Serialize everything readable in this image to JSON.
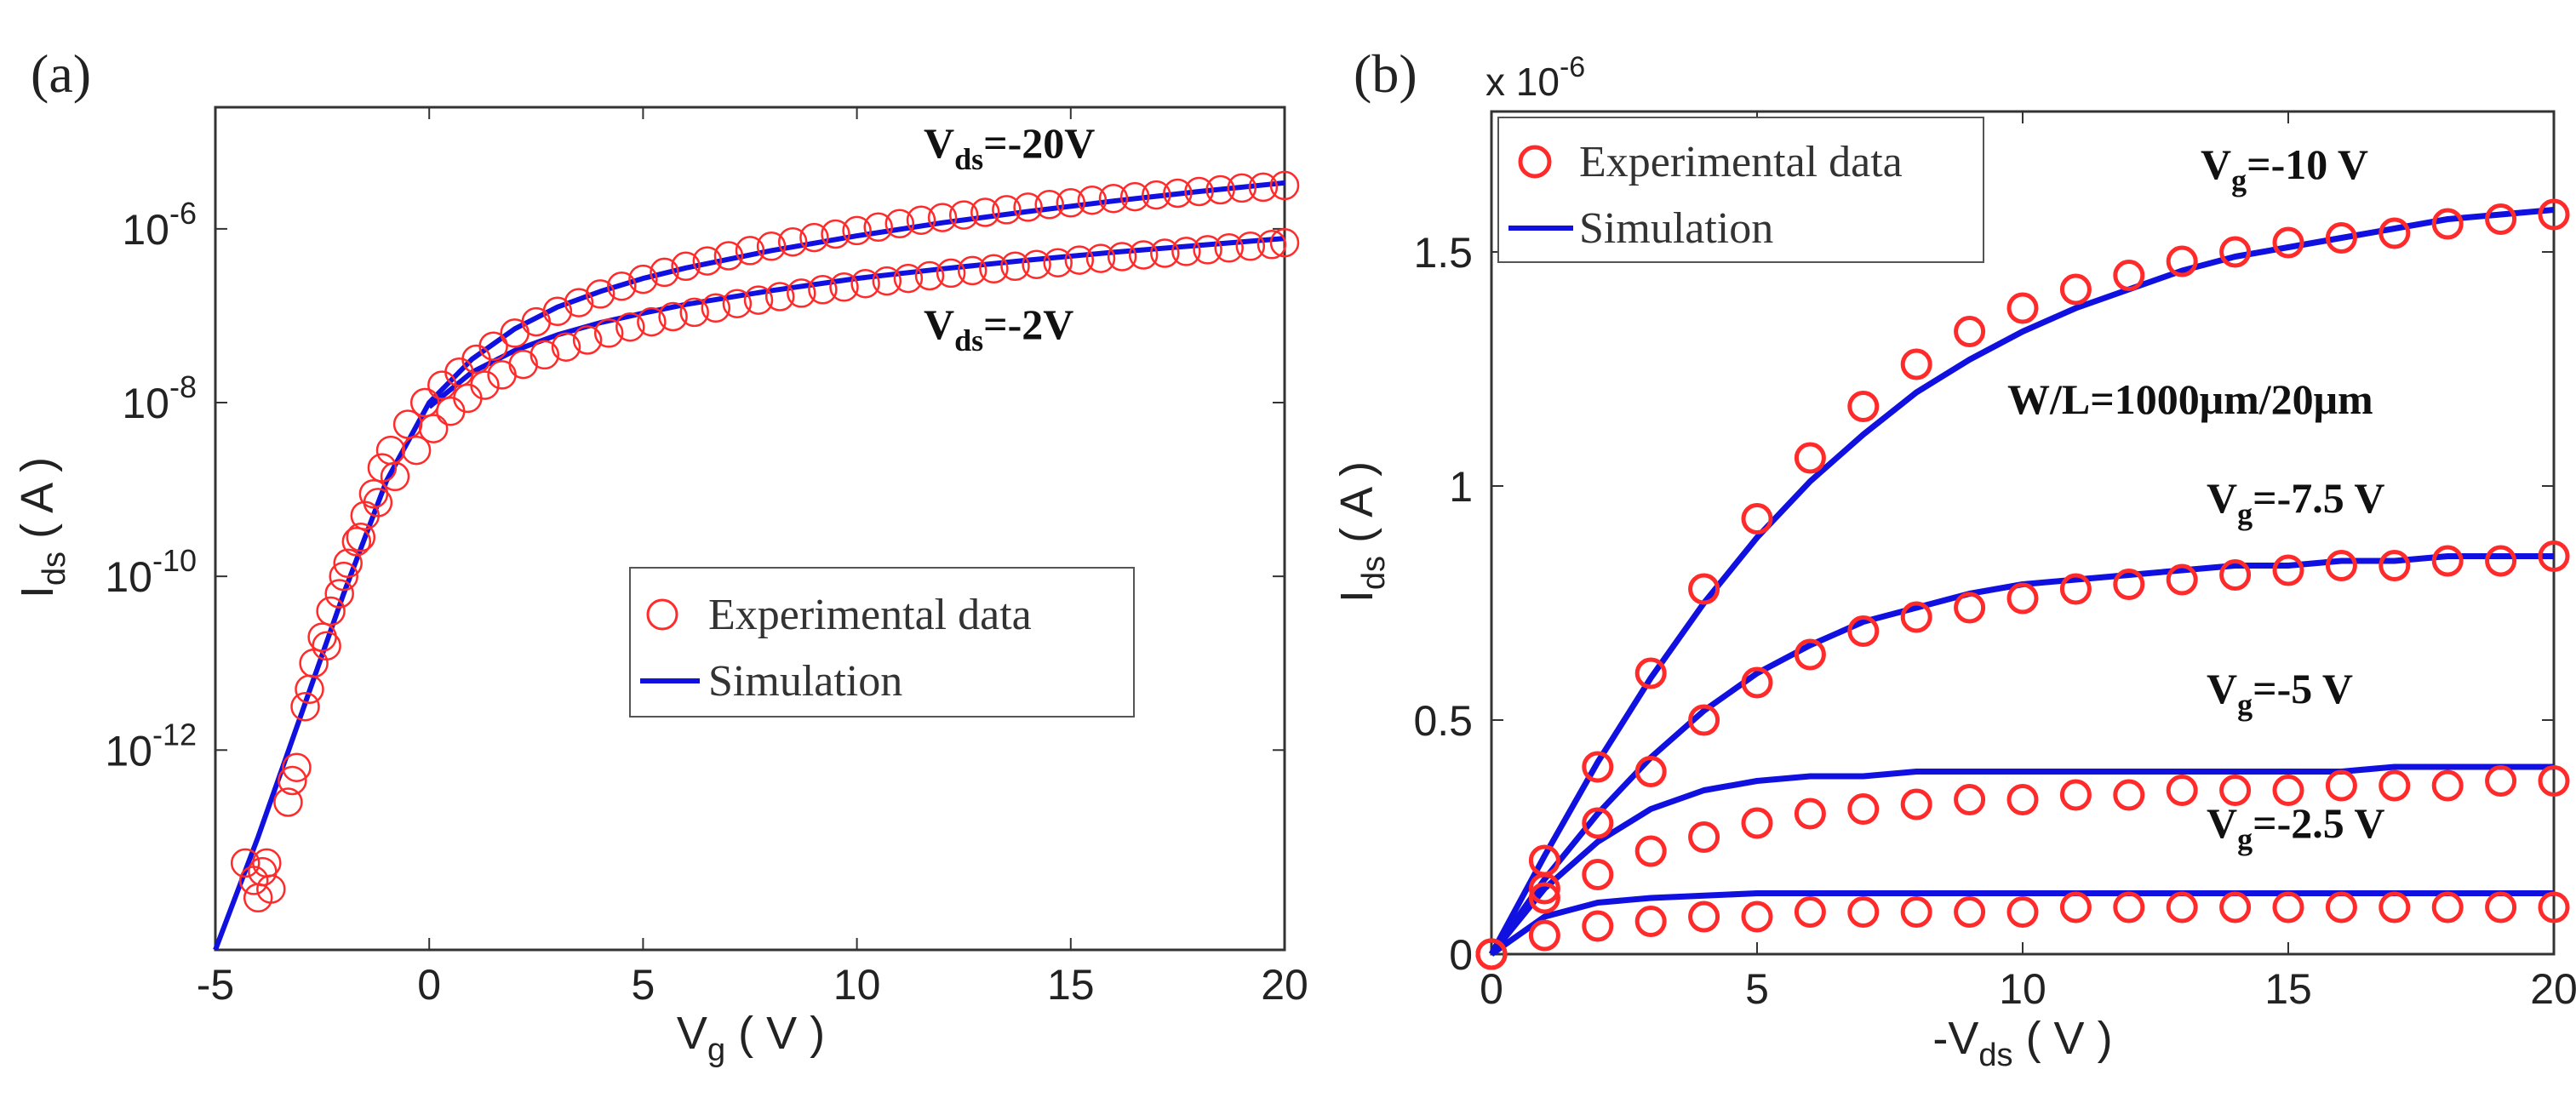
{
  "chart_data": [
    {
      "type": "scatter",
      "panel_label": "(a)",
      "xlabel": "V",
      "xlabel_sub": "g",
      "xlabel_unit": " ( V )",
      "ylabel": "I",
      "ylabel_sub": "ds",
      "ylabel_unit": " ( A )",
      "yscale": "log",
      "xlim": [
        -5,
        20
      ],
      "ylim_log10": [
        -14.3,
        -4.6
      ],
      "xticks": [
        -5,
        0,
        5,
        10,
        15,
        20
      ],
      "xtick_labels": [
        "-5",
        "0",
        "5",
        "10",
        "15",
        "20"
      ],
      "yticks_exp": [
        -12,
        -10,
        -8,
        -6
      ],
      "ytick_base": "10",
      "ytick_exps": [
        "-12",
        "-10",
        "-8",
        "-6"
      ],
      "legend": {
        "experimental": "Experimental data",
        "simulation": "Simulation",
        "location": "center-right"
      },
      "annotations": [
        {
          "main": "V",
          "sub": "ds",
          "rest": "=-20V"
        },
        {
          "main": "V",
          "sub": "ds",
          "rest": "=-2V"
        }
      ],
      "series": [
        {
          "name": "Experimental data (Vds=-20V)",
          "marker": "circle",
          "color": "#ff2a2a",
          "x": [
            -4.3,
            -4.1,
            -3.9,
            -3.7,
            -3.3,
            -3.1,
            -2.9,
            -2.7,
            -2.5,
            -2.3,
            -2.1,
            -1.9,
            -1.7,
            -1.5,
            -1.3,
            -1.1,
            -0.9,
            -0.5,
            -0.1,
            0.3,
            0.7,
            1.1,
            1.5,
            2,
            2.5,
            3,
            3.5,
            4,
            4.5,
            5,
            5.5,
            6,
            6.5,
            7,
            7.5,
            8,
            8.5,
            9,
            9.5,
            10,
            10.5,
            11,
            11.5,
            12,
            12.5,
            13,
            13.5,
            14,
            14.5,
            15,
            15.5,
            16,
            16.5,
            17,
            17.5,
            18,
            18.5,
            19,
            19.5,
            20
          ],
          "y_log10": [
            -13.3,
            -13.5,
            -13.4,
            -13.6,
            -12.6,
            -12.2,
            -11.5,
            -11,
            -10.7,
            -10.4,
            -10.2,
            -9.85,
            -9.6,
            -9.3,
            -9.05,
            -8.75,
            -8.55,
            -8.25,
            -8.0,
            -7.8,
            -7.65,
            -7.5,
            -7.35,
            -7.2,
            -7.07,
            -6.95,
            -6.85,
            -6.75,
            -6.66,
            -6.58,
            -6.5,
            -6.43,
            -6.37,
            -6.31,
            -6.25,
            -6.2,
            -6.15,
            -6.1,
            -6.06,
            -6.02,
            -5.98,
            -5.94,
            -5.9,
            -5.87,
            -5.84,
            -5.81,
            -5.78,
            -5.75,
            -5.72,
            -5.7,
            -5.67,
            -5.65,
            -5.63,
            -5.61,
            -5.59,
            -5.57,
            -5.55,
            -5.53,
            -5.52,
            -5.5
          ]
        },
        {
          "name": "Experimental data (Vds=-2V)",
          "marker": "circle",
          "color": "#ff2a2a",
          "x": [
            -4,
            -3.8,
            -3.2,
            -2.8,
            -2.4,
            -2,
            -1.6,
            -1.2,
            -0.8,
            -0.3,
            0.1,
            0.5,
            0.9,
            1.3,
            1.7,
            2.2,
            2.7,
            3.2,
            3.7,
            4.2,
            4.7,
            5.2,
            5.7,
            6.2,
            6.7,
            7.2,
            7.7,
            8.2,
            8.7,
            9.2,
            9.7,
            10.2,
            10.7,
            11.2,
            11.7,
            12.2,
            12.7,
            13.2,
            13.7,
            14.2,
            14.7,
            15.2,
            15.7,
            16.2,
            16.7,
            17.2,
            17.7,
            18.2,
            18.7,
            19.2,
            19.7,
            20
          ],
          "y_log10": [
            -13.7,
            -13.3,
            -12.35,
            -11.3,
            -10.8,
            -10.0,
            -9.55,
            -9.15,
            -8.85,
            -8.55,
            -8.3,
            -8.1,
            -7.95,
            -7.8,
            -7.68,
            -7.56,
            -7.45,
            -7.36,
            -7.28,
            -7.2,
            -7.13,
            -7.07,
            -7.01,
            -6.96,
            -6.91,
            -6.86,
            -6.82,
            -6.78,
            -6.74,
            -6.7,
            -6.67,
            -6.63,
            -6.6,
            -6.57,
            -6.54,
            -6.51,
            -6.48,
            -6.46,
            -6.43,
            -6.41,
            -6.39,
            -6.36,
            -6.34,
            -6.32,
            -6.3,
            -6.28,
            -6.26,
            -6.24,
            -6.22,
            -6.2,
            -6.18,
            -6.16
          ]
        },
        {
          "name": "Simulation (Vds=-20V)",
          "type": "line",
          "color": "#1010e0",
          "x": [
            -5,
            -4,
            -3,
            -2,
            -1,
            0,
            1,
            2,
            3,
            4,
            5,
            6,
            8,
            10,
            12,
            14,
            16,
            18,
            20
          ],
          "y_log10": [
            -14.3,
            -13.0,
            -11.6,
            -10.2,
            -8.9,
            -8.0,
            -7.5,
            -7.15,
            -6.9,
            -6.72,
            -6.57,
            -6.45,
            -6.25,
            -6.08,
            -5.93,
            -5.8,
            -5.68,
            -5.57,
            -5.47
          ]
        },
        {
          "name": "Simulation (Vds=-2V)",
          "type": "line",
          "color": "#1010e0",
          "x": [
            0,
            1,
            2,
            3,
            4,
            5,
            6,
            8,
            10,
            12,
            14,
            16,
            18,
            20
          ],
          "y_log10": [
            -8.05,
            -7.65,
            -7.4,
            -7.22,
            -7.08,
            -6.97,
            -6.87,
            -6.71,
            -6.57,
            -6.46,
            -6.36,
            -6.27,
            -6.19,
            -6.11
          ]
        }
      ]
    },
    {
      "type": "scatter",
      "panel_label": "(b)",
      "xlabel": "-V",
      "xlabel_sub": "ds",
      "xlabel_unit": " ( V )",
      "ylabel": "I",
      "ylabel_sub": "ds",
      "ylabel_unit": " ( A )",
      "multiplier_base": "x 10",
      "multiplier_exp": "-6",
      "xlim": [
        0,
        20
      ],
      "ylim": [
        0,
        1.8
      ],
      "xticks": [
        0,
        5,
        10,
        15,
        20
      ],
      "xtick_labels": [
        "0",
        "5",
        "10",
        "15",
        "20"
      ],
      "yticks": [
        0,
        0.5,
        1,
        1.5
      ],
      "ytick_labels": [
        "0",
        "0.5",
        "1",
        "1.5"
      ],
      "legend": {
        "experimental": "Experimental data",
        "simulation": "Simulation",
        "location": "top-left"
      },
      "annotations": [
        {
          "main": "V",
          "sub": "g",
          "rest": "=-10 V"
        },
        {
          "main": "V",
          "sub": "g",
          "rest": "=-7.5 V"
        },
        {
          "main": "V",
          "sub": "g",
          "rest": "=-5 V"
        },
        {
          "main": "V",
          "sub": "g",
          "rest": "=-2.5 V"
        },
        {
          "text": "W/L=1000μm/20μm"
        }
      ],
      "x": [
        0,
        1,
        2,
        3,
        4,
        5,
        6,
        7,
        8,
        9,
        10,
        11,
        12,
        13,
        14,
        15,
        16,
        17,
        18,
        19,
        20
      ],
      "series": [
        {
          "name": "Vg=-10 V",
          "color_exp": "#ff2a2a",
          "color_sim": "#1010e0",
          "exp": [
            0,
            0.2,
            0.4,
            0.6,
            0.78,
            0.93,
            1.06,
            1.17,
            1.26,
            1.33,
            1.38,
            1.42,
            1.45,
            1.48,
            1.5,
            1.52,
            1.53,
            1.54,
            1.56,
            1.57,
            1.58
          ],
          "sim": [
            0,
            0.21,
            0.41,
            0.59,
            0.75,
            0.89,
            1.01,
            1.11,
            1.2,
            1.27,
            1.33,
            1.38,
            1.42,
            1.46,
            1.49,
            1.51,
            1.53,
            1.55,
            1.57,
            1.58,
            1.59
          ]
        },
        {
          "name": "Vg=-7.5 V",
          "color_exp": "#ff2a2a",
          "color_sim": "#1010e0",
          "exp": [
            0,
            0.14,
            0.28,
            0.39,
            0.5,
            0.58,
            0.64,
            0.69,
            0.72,
            0.74,
            0.76,
            0.78,
            0.79,
            0.8,
            0.81,
            0.82,
            0.83,
            0.83,
            0.84,
            0.84,
            0.85
          ],
          "sim": [
            0,
            0.16,
            0.3,
            0.42,
            0.52,
            0.6,
            0.66,
            0.71,
            0.74,
            0.77,
            0.79,
            0.8,
            0.81,
            0.82,
            0.83,
            0.83,
            0.84,
            0.84,
            0.85,
            0.85,
            0.85
          ]
        },
        {
          "name": "Vg=-5 V",
          "color_exp": "#ff2a2a",
          "color_sim": "#1010e0",
          "exp": [
            0,
            0.12,
            0.17,
            0.22,
            0.25,
            0.28,
            0.3,
            0.31,
            0.32,
            0.33,
            0.33,
            0.34,
            0.34,
            0.35,
            0.35,
            0.35,
            0.36,
            0.36,
            0.36,
            0.37,
            0.37
          ],
          "sim": [
            0,
            0.14,
            0.24,
            0.31,
            0.35,
            0.37,
            0.38,
            0.38,
            0.39,
            0.39,
            0.39,
            0.39,
            0.39,
            0.39,
            0.39,
            0.39,
            0.39,
            0.4,
            0.4,
            0.4,
            0.4
          ]
        },
        {
          "name": "Vg=-2.5 V",
          "color_exp": "#ff2a2a",
          "color_sim": "#1010e0",
          "exp": [
            0,
            0.04,
            0.06,
            0.07,
            0.08,
            0.08,
            0.09,
            0.09,
            0.09,
            0.09,
            0.09,
            0.1,
            0.1,
            0.1,
            0.1,
            0.1,
            0.1,
            0.1,
            0.1,
            0.1,
            0.1
          ],
          "sim": [
            0,
            0.08,
            0.11,
            0.12,
            0.125,
            0.13,
            0.13,
            0.13,
            0.13,
            0.13,
            0.13,
            0.13,
            0.13,
            0.13,
            0.13,
            0.13,
            0.13,
            0.13,
            0.13,
            0.13,
            0.13
          ]
        }
      ]
    }
  ]
}
